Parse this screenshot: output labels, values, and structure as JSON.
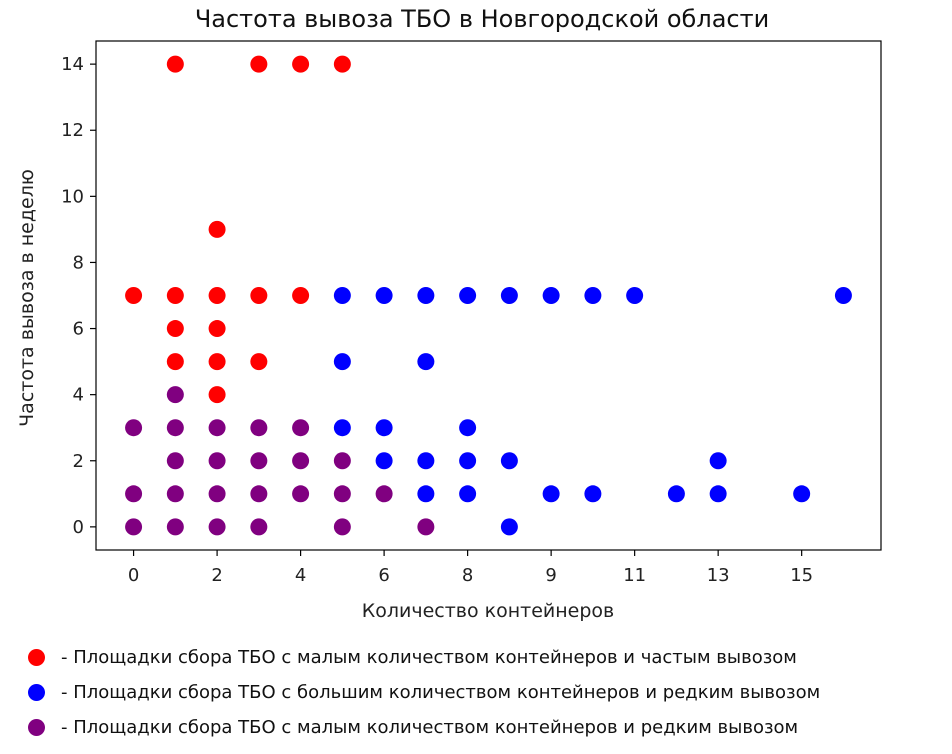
{
  "chart_data": {
    "type": "scatter",
    "title": "Частота вывоза ТБО в Новгородской области",
    "xlabel": "Количество контейнеров",
    "ylabel": "Частота вывоза в неделю",
    "x_ticks": [
      "0",
      "2",
      "4",
      "6",
      "8",
      "9",
      "11",
      "13",
      "15"
    ],
    "y_ticks": [
      0,
      2,
      4,
      6,
      8,
      10,
      12,
      14
    ],
    "ylim": [
      -0.7,
      14.7
    ],
    "grid": false,
    "legend_placement": "below",
    "series": [
      {
        "name": "- Площадки сбора ТБО с малым количеством контейнеров и частым вывозом",
        "color": "#ff0000",
        "points": [
          {
            "x": 1,
            "y": 14
          },
          {
            "x": 3,
            "y": 14
          },
          {
            "x": 4,
            "y": 14
          },
          {
            "x": 5,
            "y": 14
          },
          {
            "x": 2,
            "y": 9
          },
          {
            "x": 0,
            "y": 7
          },
          {
            "x": 1,
            "y": 7
          },
          {
            "x": 2,
            "y": 7
          },
          {
            "x": 3,
            "y": 7
          },
          {
            "x": 4,
            "y": 7
          },
          {
            "x": 1,
            "y": 6
          },
          {
            "x": 2,
            "y": 6
          },
          {
            "x": 1,
            "y": 5
          },
          {
            "x": 2,
            "y": 5
          },
          {
            "x": 3,
            "y": 5
          },
          {
            "x": 2,
            "y": 4
          }
        ]
      },
      {
        "name": "- Площадки сбора ТБО с большим количеством контейнеров и редким вывозом",
        "color": "#0000ff",
        "points": [
          {
            "x": 5,
            "y": 7
          },
          {
            "x": 6,
            "y": 7
          },
          {
            "x": 7,
            "y": 7
          },
          {
            "x": 8,
            "y": 7
          },
          {
            "x": 9,
            "y": 7
          },
          {
            "x": 10,
            "y": 7
          },
          {
            "x": 11,
            "y": 7
          },
          {
            "x": 12,
            "y": 7
          },
          {
            "x": 17,
            "y": 7
          },
          {
            "x": 5,
            "y": 5
          },
          {
            "x": 7,
            "y": 5
          },
          {
            "x": 5,
            "y": 3
          },
          {
            "x": 6,
            "y": 3
          },
          {
            "x": 8,
            "y": 3
          },
          {
            "x": 6,
            "y": 2
          },
          {
            "x": 7,
            "y": 2
          },
          {
            "x": 8,
            "y": 2
          },
          {
            "x": 9,
            "y": 2
          },
          {
            "x": 14,
            "y": 2
          },
          {
            "x": 7,
            "y": 1
          },
          {
            "x": 8,
            "y": 1
          },
          {
            "x": 10,
            "y": 1
          },
          {
            "x": 11,
            "y": 1
          },
          {
            "x": 13,
            "y": 1
          },
          {
            "x": 14,
            "y": 1
          },
          {
            "x": 16,
            "y": 1
          },
          {
            "x": 9,
            "y": 0
          }
        ]
      },
      {
        "name": "- Площадки сбора ТБО с малым количеством контейнеров и редким вывозом",
        "color": "#800080",
        "points": [
          {
            "x": 1,
            "y": 4
          },
          {
            "x": 0,
            "y": 3
          },
          {
            "x": 1,
            "y": 3
          },
          {
            "x": 2,
            "y": 3
          },
          {
            "x": 3,
            "y": 3
          },
          {
            "x": 4,
            "y": 3
          },
          {
            "x": 1,
            "y": 2
          },
          {
            "x": 2,
            "y": 2
          },
          {
            "x": 3,
            "y": 2
          },
          {
            "x": 4,
            "y": 2
          },
          {
            "x": 5,
            "y": 2
          },
          {
            "x": 0,
            "y": 1
          },
          {
            "x": 1,
            "y": 1
          },
          {
            "x": 2,
            "y": 1
          },
          {
            "x": 3,
            "y": 1
          },
          {
            "x": 4,
            "y": 1
          },
          {
            "x": 5,
            "y": 1
          },
          {
            "x": 6,
            "y": 1
          },
          {
            "x": 0,
            "y": 0
          },
          {
            "x": 1,
            "y": 0
          },
          {
            "x": 2,
            "y": 0
          },
          {
            "x": 3,
            "y": 0
          },
          {
            "x": 5,
            "y": 0
          },
          {
            "x": 7,
            "y": 0
          }
        ]
      }
    ]
  }
}
